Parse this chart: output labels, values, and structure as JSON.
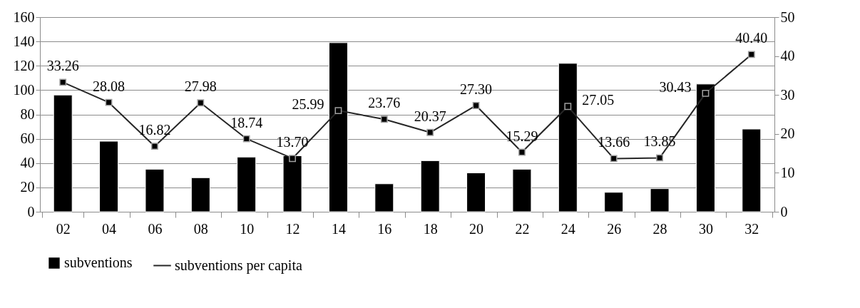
{
  "chart_data": {
    "type": "bar",
    "categories": [
      "02",
      "04",
      "06",
      "08",
      "10",
      "12",
      "14",
      "16",
      "18",
      "20",
      "22",
      "24",
      "26",
      "28",
      "30",
      "32"
    ],
    "series": [
      {
        "name": "subventions",
        "color": "#000000",
        "values": [
          96,
          58,
          35,
          28,
          45,
          46,
          139,
          23,
          42,
          32,
          35,
          122,
          16,
          19,
          105,
          68
        ]
      },
      {
        "name": "subventions per capita",
        "type": "line",
        "axis": "y2",
        "color": "#262626",
        "values": [
          33.26,
          28.08,
          16.82,
          27.98,
          18.74,
          13.7,
          25.99,
          23.76,
          20.37,
          27.3,
          15.29,
          27.05,
          13.66,
          13.85,
          30.43,
          40.4
        ],
        "value_labels": [
          "33.26",
          "28.08",
          "16.82",
          "27.98",
          "18.74",
          "13.70",
          "25.99",
          "23.76",
          "20.37",
          "27.30",
          "15.29",
          "27.05",
          "13.66",
          "13.85",
          "30.43",
          "40.40"
        ]
      }
    ],
    "ylim": [
      0,
      160
    ],
    "yticks": [
      0,
      20,
      40,
      60,
      80,
      100,
      120,
      140,
      160
    ],
    "y2lim": [
      0,
      50
    ],
    "y2ticks": [
      0,
      10,
      20,
      30,
      40,
      50
    ],
    "grid": "y",
    "legend": "bottom",
    "marker": "square",
    "line_style": "solid"
  }
}
